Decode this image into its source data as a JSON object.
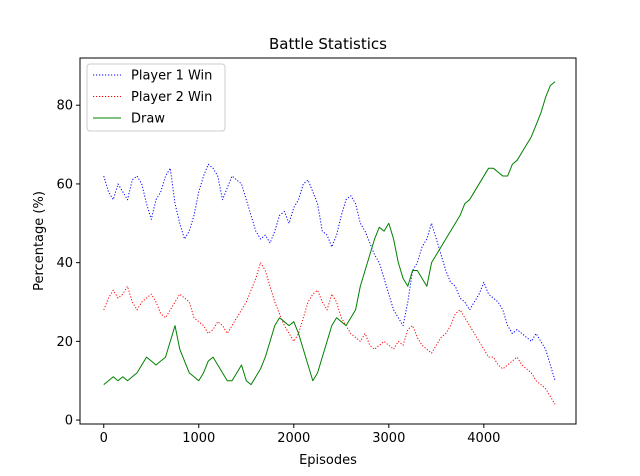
{
  "chart_data": {
    "type": "line",
    "title": "Battle Statistics",
    "xlabel": "Episodes",
    "ylabel": "Percentage (%)",
    "xlim": [
      -250,
      4970
    ],
    "ylim": [
      -1,
      92
    ],
    "xticks": [
      0,
      1000,
      2000,
      3000,
      4000
    ],
    "yticks": [
      0,
      20,
      40,
      60,
      80
    ],
    "grid": false,
    "legend_position": "top-left",
    "series": [
      {
        "name": "Player 1 Win",
        "color": "#0000ff",
        "style": "dotted",
        "x": [
          0,
          50,
          100,
          150,
          200,
          250,
          300,
          350,
          400,
          450,
          500,
          550,
          600,
          650,
          700,
          750,
          800,
          850,
          900,
          950,
          1000,
          1050,
          1100,
          1150,
          1200,
          1250,
          1300,
          1350,
          1400,
          1450,
          1500,
          1550,
          1600,
          1650,
          1700,
          1750,
          1800,
          1850,
          1900,
          1950,
          2000,
          2050,
          2100,
          2150,
          2200,
          2250,
          2300,
          2350,
          2400,
          2450,
          2500,
          2550,
          2600,
          2650,
          2700,
          2750,
          2800,
          2850,
          2900,
          2950,
          3000,
          3050,
          3100,
          3150,
          3200,
          3250,
          3300,
          3350,
          3400,
          3450,
          3500,
          3550,
          3600,
          3650,
          3700,
          3750,
          3800,
          3850,
          3900,
          3950,
          4000,
          4050,
          4100,
          4150,
          4200,
          4250,
          4300,
          4350,
          4400,
          4450,
          4500,
          4550,
          4600,
          4650,
          4700,
          4750
        ],
        "y": [
          62,
          58,
          56,
          60,
          58,
          56,
          61,
          62,
          60,
          55,
          51,
          56,
          58,
          62,
          64,
          55,
          50,
          46,
          48,
          52,
          58,
          62,
          65,
          64,
          62,
          56,
          59,
          62,
          61,
          60,
          56,
          52,
          48,
          46,
          47,
          45,
          48,
          52,
          53,
          50,
          54,
          56,
          60,
          61,
          58,
          55,
          48,
          47,
          44,
          47,
          52,
          56,
          57,
          55,
          50,
          48,
          45,
          42,
          40,
          36,
          32,
          28,
          26,
          24,
          30,
          38,
          40,
          44,
          46,
          50,
          46,
          42,
          38,
          35,
          34,
          31,
          30,
          28,
          30,
          32,
          35,
          32,
          31,
          30,
          28,
          24,
          22,
          23,
          22,
          21,
          20,
          22,
          20,
          18,
          14,
          10
        ]
      },
      {
        "name": "Player 2 Win",
        "color": "#ff0000",
        "style": "dotted",
        "x": [
          0,
          50,
          100,
          150,
          200,
          250,
          300,
          350,
          400,
          450,
          500,
          550,
          600,
          650,
          700,
          750,
          800,
          850,
          900,
          950,
          1000,
          1050,
          1100,
          1150,
          1200,
          1250,
          1300,
          1350,
          1400,
          1450,
          1500,
          1550,
          1600,
          1650,
          1700,
          1750,
          1800,
          1850,
          1900,
          1950,
          2000,
          2050,
          2100,
          2150,
          2200,
          2250,
          2300,
          2350,
          2400,
          2450,
          2500,
          2550,
          2600,
          2650,
          2700,
          2750,
          2800,
          2850,
          2900,
          2950,
          3000,
          3050,
          3100,
          3150,
          3200,
          3250,
          3300,
          3350,
          3400,
          3450,
          3500,
          3550,
          3600,
          3650,
          3700,
          3750,
          3800,
          3850,
          3900,
          3950,
          4000,
          4050,
          4100,
          4150,
          4200,
          4250,
          4300,
          4350,
          4400,
          4450,
          4500,
          4550,
          4600,
          4650,
          4700,
          4750
        ],
        "y": [
          28,
          31,
          33,
          31,
          32,
          34,
          30,
          28,
          30,
          31,
          32,
          30,
          27,
          26,
          28,
          30,
          32,
          31,
          30,
          26,
          25,
          24,
          22,
          23,
          25,
          24,
          22,
          24,
          26,
          28,
          30,
          33,
          36,
          40,
          38,
          34,
          30,
          27,
          24,
          22,
          20,
          22,
          26,
          30,
          32,
          33,
          30,
          28,
          32,
          30,
          26,
          24,
          22,
          21,
          20,
          22,
          19,
          18,
          19,
          20,
          19,
          18,
          20,
          19,
          23,
          24,
          21,
          19,
          18,
          17,
          19,
          21,
          22,
          24,
          27,
          28,
          26,
          24,
          22,
          20,
          18,
          16,
          16,
          14,
          13,
          14,
          15,
          16,
          14,
          13,
          12,
          10,
          9,
          8,
          6,
          4
        ]
      },
      {
        "name": "Draw",
        "color": "#008000",
        "style": "solid",
        "x": [
          0,
          50,
          100,
          150,
          200,
          250,
          300,
          350,
          400,
          450,
          500,
          550,
          600,
          650,
          700,
          750,
          800,
          850,
          900,
          950,
          1000,
          1050,
          1100,
          1150,
          1200,
          1250,
          1300,
          1350,
          1400,
          1450,
          1500,
          1550,
          1600,
          1650,
          1700,
          1750,
          1800,
          1850,
          1900,
          1950,
          2000,
          2050,
          2100,
          2150,
          2200,
          2250,
          2300,
          2350,
          2400,
          2450,
          2500,
          2550,
          2600,
          2650,
          2700,
          2750,
          2800,
          2850,
          2900,
          2950,
          3000,
          3050,
          3100,
          3150,
          3200,
          3250,
          3300,
          3350,
          3400,
          3450,
          3500,
          3550,
          3600,
          3650,
          3700,
          3750,
          3800,
          3850,
          3900,
          3950,
          4000,
          4050,
          4100,
          4150,
          4200,
          4250,
          4300,
          4350,
          4400,
          4450,
          4500,
          4550,
          4600,
          4650,
          4700,
          4750
        ],
        "y": [
          9,
          10,
          11,
          10,
          11,
          10,
          11,
          12,
          14,
          16,
          15,
          14,
          15,
          16,
          20,
          24,
          18,
          15,
          12,
          11,
          10,
          12,
          15,
          16,
          14,
          12,
          10,
          10,
          12,
          14,
          10,
          9,
          11,
          13,
          16,
          20,
          24,
          26,
          25,
          24,
          25,
          22,
          18,
          14,
          10,
          12,
          16,
          20,
          24,
          26,
          25,
          24,
          26,
          28,
          34,
          38,
          42,
          46,
          49,
          48,
          50,
          46,
          40,
          36,
          34,
          38,
          38,
          36,
          34,
          40,
          42,
          44,
          46,
          48,
          50,
          52,
          55,
          56,
          58,
          60,
          62,
          64,
          64,
          63,
          62,
          62,
          65,
          66,
          68,
          70,
          72,
          75,
          78,
          82,
          85,
          86
        ]
      }
    ]
  }
}
